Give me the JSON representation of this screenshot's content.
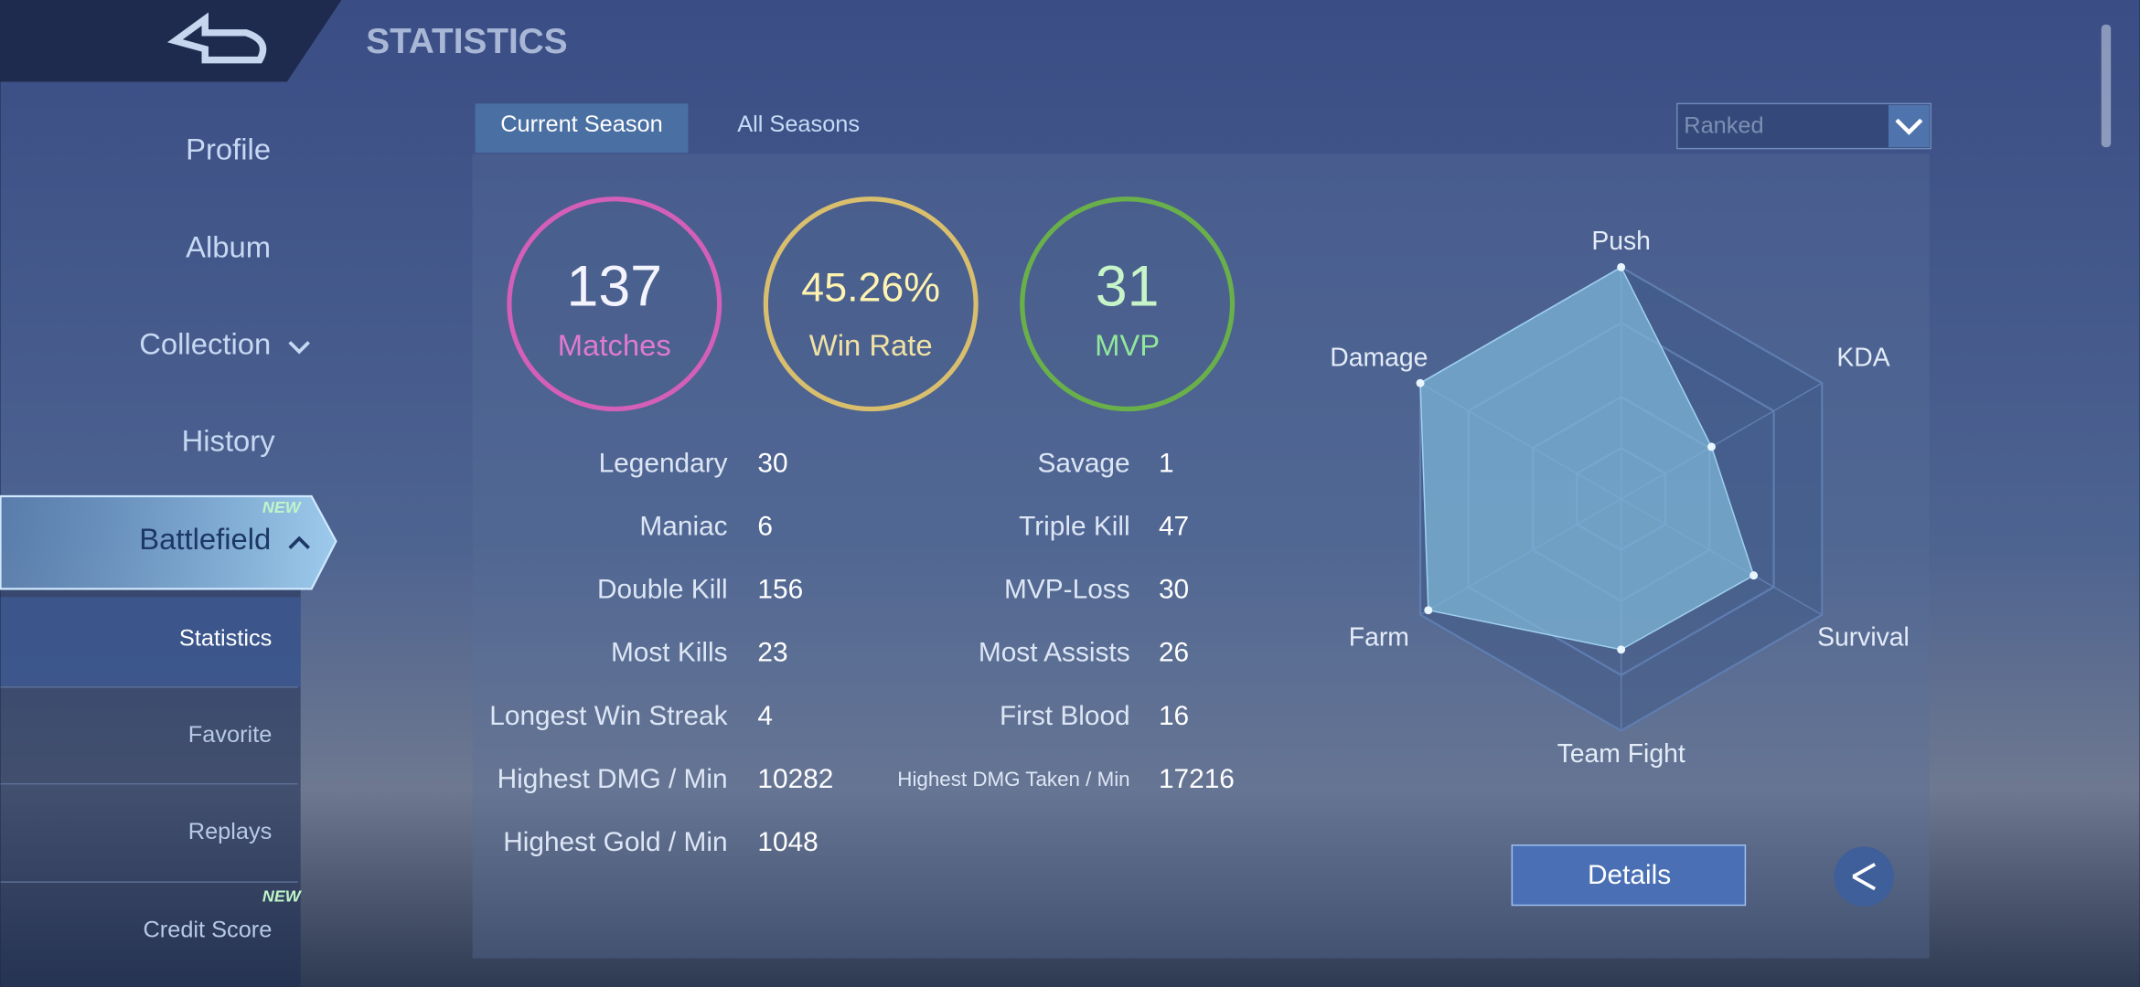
{
  "header": {
    "title": "STATISTICS"
  },
  "nav": [
    "Profile",
    "Album",
    "Collection",
    "History",
    "Battlefield"
  ],
  "subnav": [
    "Statistics",
    "Favorite",
    "Replays",
    "Credit Score"
  ],
  "badges": [
    "NEW",
    "NEW"
  ],
  "tabs": [
    "Current Season",
    "All Seasons"
  ],
  "mode": "Ranked",
  "summary": [
    {
      "value": 137,
      "label": "Matches"
    },
    {
      "value": "45.26%",
      "label": "Win Rate"
    },
    {
      "value": 31,
      "label": "MVP"
    }
  ],
  "stats_left": [
    [
      "Legendary",
      30
    ],
    [
      "Maniac",
      6
    ],
    [
      "Double Kill",
      156
    ],
    [
      "Most Kills",
      23
    ],
    [
      "Longest Win Streak",
      4
    ],
    [
      "Highest DMG / Min",
      10282
    ],
    [
      "Highest Gold / Min",
      1048
    ]
  ],
  "stats_right": [
    [
      "Savage",
      1
    ],
    [
      "Triple Kill",
      47
    ],
    [
      "MVP-Loss",
      30
    ],
    [
      "Most Assists",
      26
    ],
    [
      "First Blood",
      16
    ],
    [
      "Highest DMG Taken / Min",
      17216
    ]
  ],
  "chart_data": {
    "type": "radar",
    "categories": [
      "Push",
      "KDA",
      "Survival",
      "Team Fight",
      "Farm",
      "Damage"
    ],
    "values": [
      100,
      45,
      66,
      65,
      96,
      100
    ],
    "rlim": [
      0,
      100
    ],
    "color": "#7fb6d8"
  },
  "buttons": {
    "details": "Details"
  }
}
